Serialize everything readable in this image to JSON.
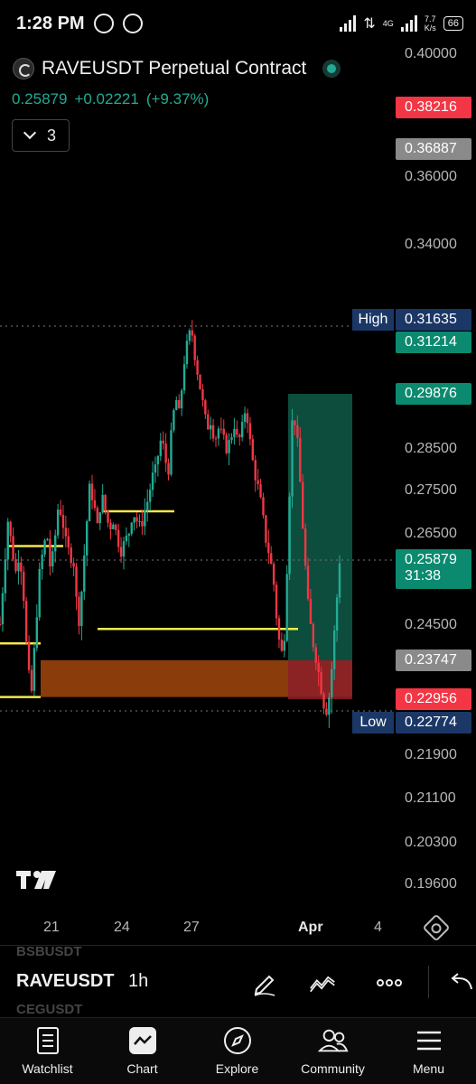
{
  "status_bar": {
    "time": "1:28 PM",
    "network_speed_value": "7.7",
    "network_speed_unit": "K/s",
    "network_type": "4G",
    "battery": "66"
  },
  "chart_header": {
    "symbol_title": "RAVEUSDT Perpetual Contract",
    "last_price": "0.25879",
    "change": "+0.02221",
    "change_pct": "(+9.37%)",
    "indicator_count": "3"
  },
  "colors": {
    "up": "#22ab94",
    "down": "#f23645",
    "level_line": "#f5e94a",
    "zone": "#b8500f",
    "target_box": "#0e5a48",
    "stop_box": "#8b1d28",
    "high_low_tag": "#1b3766"
  },
  "price_axis": {
    "ticks": [
      "0.40000",
      "0.36000",
      "0.34000",
      "0.28500",
      "0.27500",
      "0.26500",
      "0.24500",
      "0.21900",
      "0.21100",
      "0.20300",
      "0.19600"
    ],
    "tags": {
      "red_top": "0.38216",
      "gray_top": "0.36887",
      "high_label": "High",
      "high_value": "0.31635",
      "green_1": "0.31214",
      "green_2": "0.29876",
      "last_price": "0.25879",
      "countdown": "31:38",
      "gray_mid": "0.23747",
      "red_mid": "0.22956",
      "low_label": "Low",
      "low_value": "0.22774"
    }
  },
  "time_axis": {
    "labels": [
      "21",
      "24",
      "27",
      "Apr",
      "4"
    ]
  },
  "chart_data": {
    "type": "candlestick",
    "symbol": "RAVEUSDT",
    "interval": "1h",
    "x_ticks": [
      "21",
      "24",
      "27",
      "Apr",
      "4"
    ],
    "y_ticks": [
      0.4,
      0.36,
      0.34,
      0.285,
      0.275,
      0.265,
      0.245,
      0.219,
      0.211,
      0.203,
      0.196
    ],
    "high": 0.31635,
    "low": 0.22774,
    "last": 0.25879,
    "price_path": [
      0.245,
      0.256,
      0.268,
      0.262,
      0.256,
      0.261,
      0.252,
      0.237,
      0.23,
      0.242,
      0.255,
      0.261,
      0.265,
      0.256,
      0.263,
      0.272,
      0.268,
      0.262,
      0.26,
      0.258,
      0.244,
      0.253,
      0.265,
      0.276,
      0.272,
      0.266,
      0.274,
      0.27,
      0.266,
      0.268,
      0.264,
      0.261,
      0.263,
      0.265,
      0.27,
      0.268,
      0.266,
      0.27,
      0.273,
      0.278,
      0.28,
      0.287,
      0.285,
      0.278,
      0.29,
      0.298,
      0.293,
      0.306,
      0.312,
      0.316,
      0.308,
      0.302,
      0.296,
      0.29,
      0.292,
      0.287,
      0.29,
      0.288,
      0.285,
      0.287,
      0.291,
      0.286,
      0.29,
      0.296,
      0.287,
      0.28,
      0.276,
      0.271,
      0.264,
      0.26,
      0.255,
      0.245,
      0.238,
      0.244,
      0.27,
      0.295,
      0.289,
      0.275,
      0.26,
      0.248,
      0.242,
      0.238,
      0.233,
      0.229,
      0.2277,
      0.236,
      0.247,
      0.2588
    ],
    "levels": [
      {
        "price": 0.262,
        "x_from": 8,
        "x_to": 70
      },
      {
        "price": 0.27,
        "x_from": 113,
        "x_to": 193
      },
      {
        "price": 0.244,
        "x_from": 108,
        "x_to": 330
      },
      {
        "price": 0.241,
        "x_from": 0,
        "x_to": 45
      },
      {
        "price": 0.23,
        "x_from": 0,
        "x_to": 45
      }
    ],
    "zone": {
      "from": 0.23,
      "to": 0.2375
    },
    "position": {
      "entry": 0.23747,
      "target": 0.29876,
      "stop": 0.22956
    }
  },
  "toolbar": {
    "ghost_above": "BSBUSDT",
    "ghost_below": "CEGUSDT",
    "symbol": "RAVEUSDT",
    "interval": "1h"
  },
  "bottom_nav": {
    "items": [
      {
        "label": "Watchlist"
      },
      {
        "label": "Chart"
      },
      {
        "label": "Explore"
      },
      {
        "label": "Community"
      },
      {
        "label": "Menu"
      }
    ]
  }
}
